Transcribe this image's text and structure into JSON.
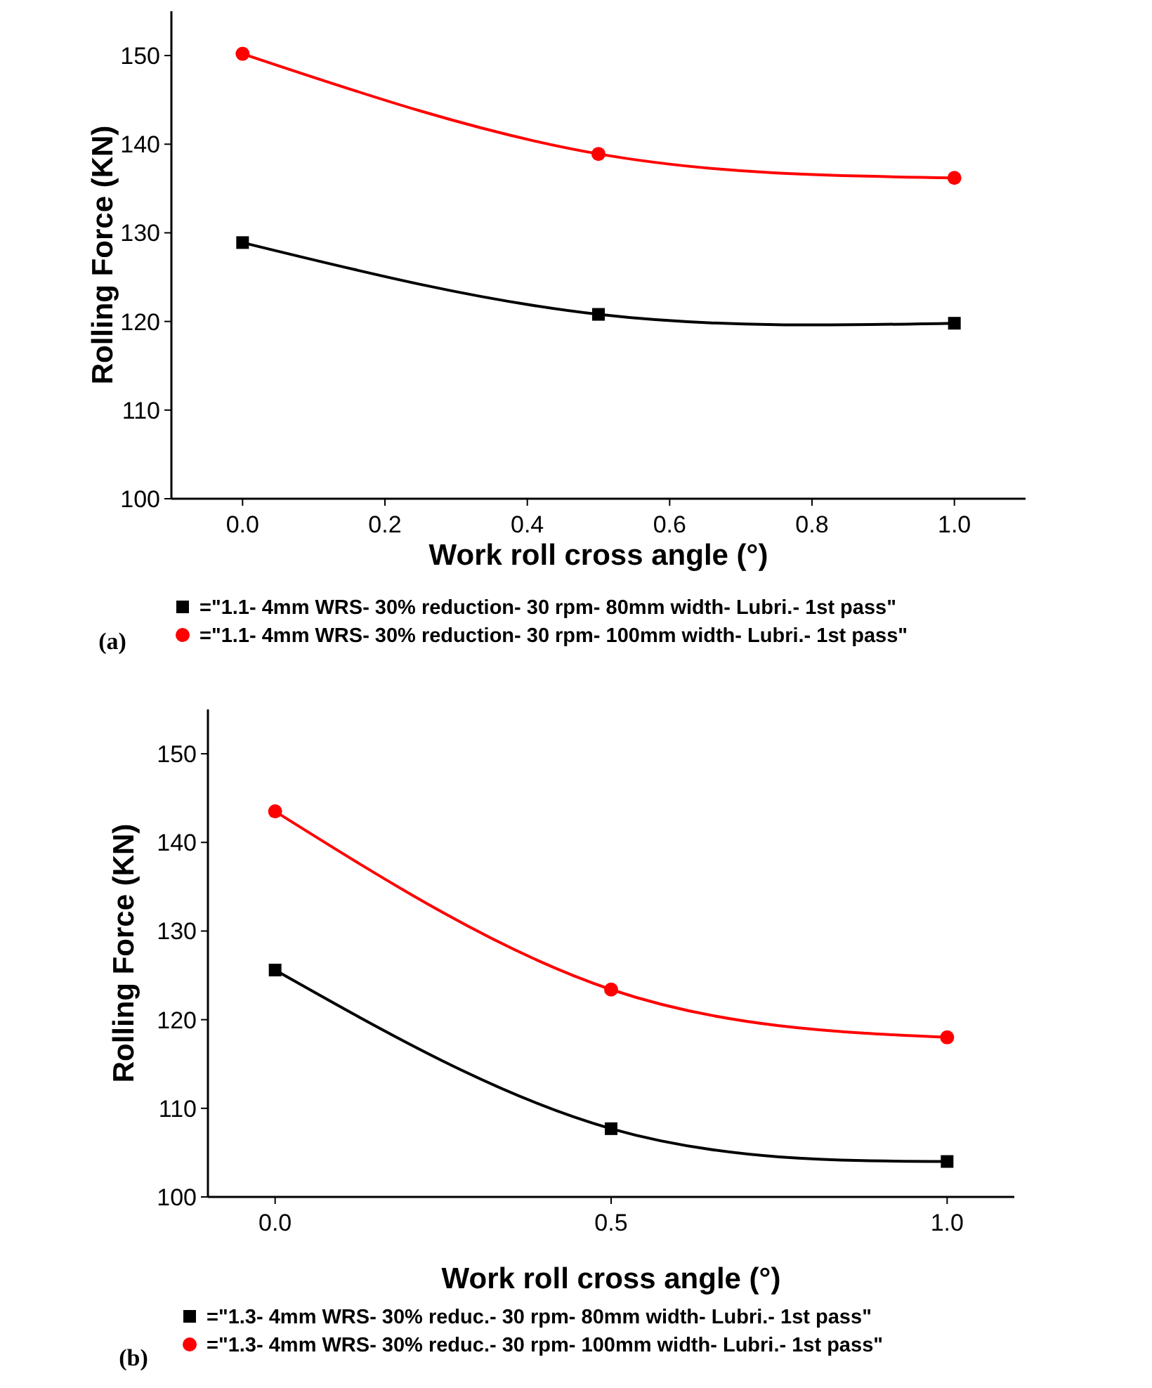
{
  "chart_data": [
    {
      "type": "line",
      "xlabel": "Work roll cross angle (°)",
      "ylabel": "Rolling Force (KN)",
      "x": [
        0,
        0.5,
        1
      ],
      "xlim": [
        -0.1,
        1.1
      ],
      "xticks": [
        {
          "value": 0,
          "label": "0.0"
        },
        {
          "value": 0.2,
          "label": "0.2"
        },
        {
          "value": 0.4,
          "label": "0.4"
        },
        {
          "value": 0.6,
          "label": "0.6"
        },
        {
          "value": 0.8,
          "label": "0.8"
        },
        {
          "value": 1,
          "label": "1.0"
        }
      ],
      "ylim": [
        100,
        155
      ],
      "yticks": [
        100,
        110,
        120,
        130,
        140,
        150
      ],
      "grid": false,
      "legend": "bottom",
      "annotations": [
        "(a)"
      ],
      "series": [
        {
          "name": "=\"1.1- 4mm WRS- 30% reduction- 30 rpm- 80mm width- Lubri.- 1st pass\"",
          "color": "#000000",
          "marker": "square",
          "values": [
            128.9,
            120.8,
            119.8
          ]
        },
        {
          "name": "=\"1.1- 4mm WRS- 30% reduction- 30 rpm- 100mm width- Lubri.- 1st pass\"",
          "color": "#ff0000",
          "marker": "circle",
          "values": [
            150.2,
            138.9,
            136.2
          ]
        }
      ]
    },
    {
      "type": "line",
      "xlabel": "Work roll cross angle (°)",
      "ylabel": "Rolling Force (KN)",
      "x": [
        0,
        0.5,
        1
      ],
      "xlim": [
        -0.1,
        1.1
      ],
      "xticks": [
        {
          "value": 0,
          "label": "0.0"
        },
        {
          "value": 0.5,
          "label": "0.5"
        },
        {
          "value": 1,
          "label": "1.0"
        }
      ],
      "ylim": [
        100,
        155
      ],
      "yticks": [
        100,
        110,
        120,
        130,
        140,
        150
      ],
      "grid": false,
      "legend": "bottom",
      "annotations": [
        "(b)"
      ],
      "series": [
        {
          "name": "=\"1.3- 4mm WRS- 30% reduc.- 30 rpm- 80mm width- Lubri.- 1st pass\"",
          "color": "#000000",
          "marker": "square",
          "values": [
            125.6,
            107.7,
            104.0
          ]
        },
        {
          "name": "=\"1.3- 4mm WRS- 30% reduc.- 30 rpm- 100mm width- Lubri.- 1st pass\"",
          "color": "#ff0000",
          "marker": "circle",
          "values": [
            143.5,
            123.4,
            118.0
          ]
        }
      ]
    }
  ]
}
